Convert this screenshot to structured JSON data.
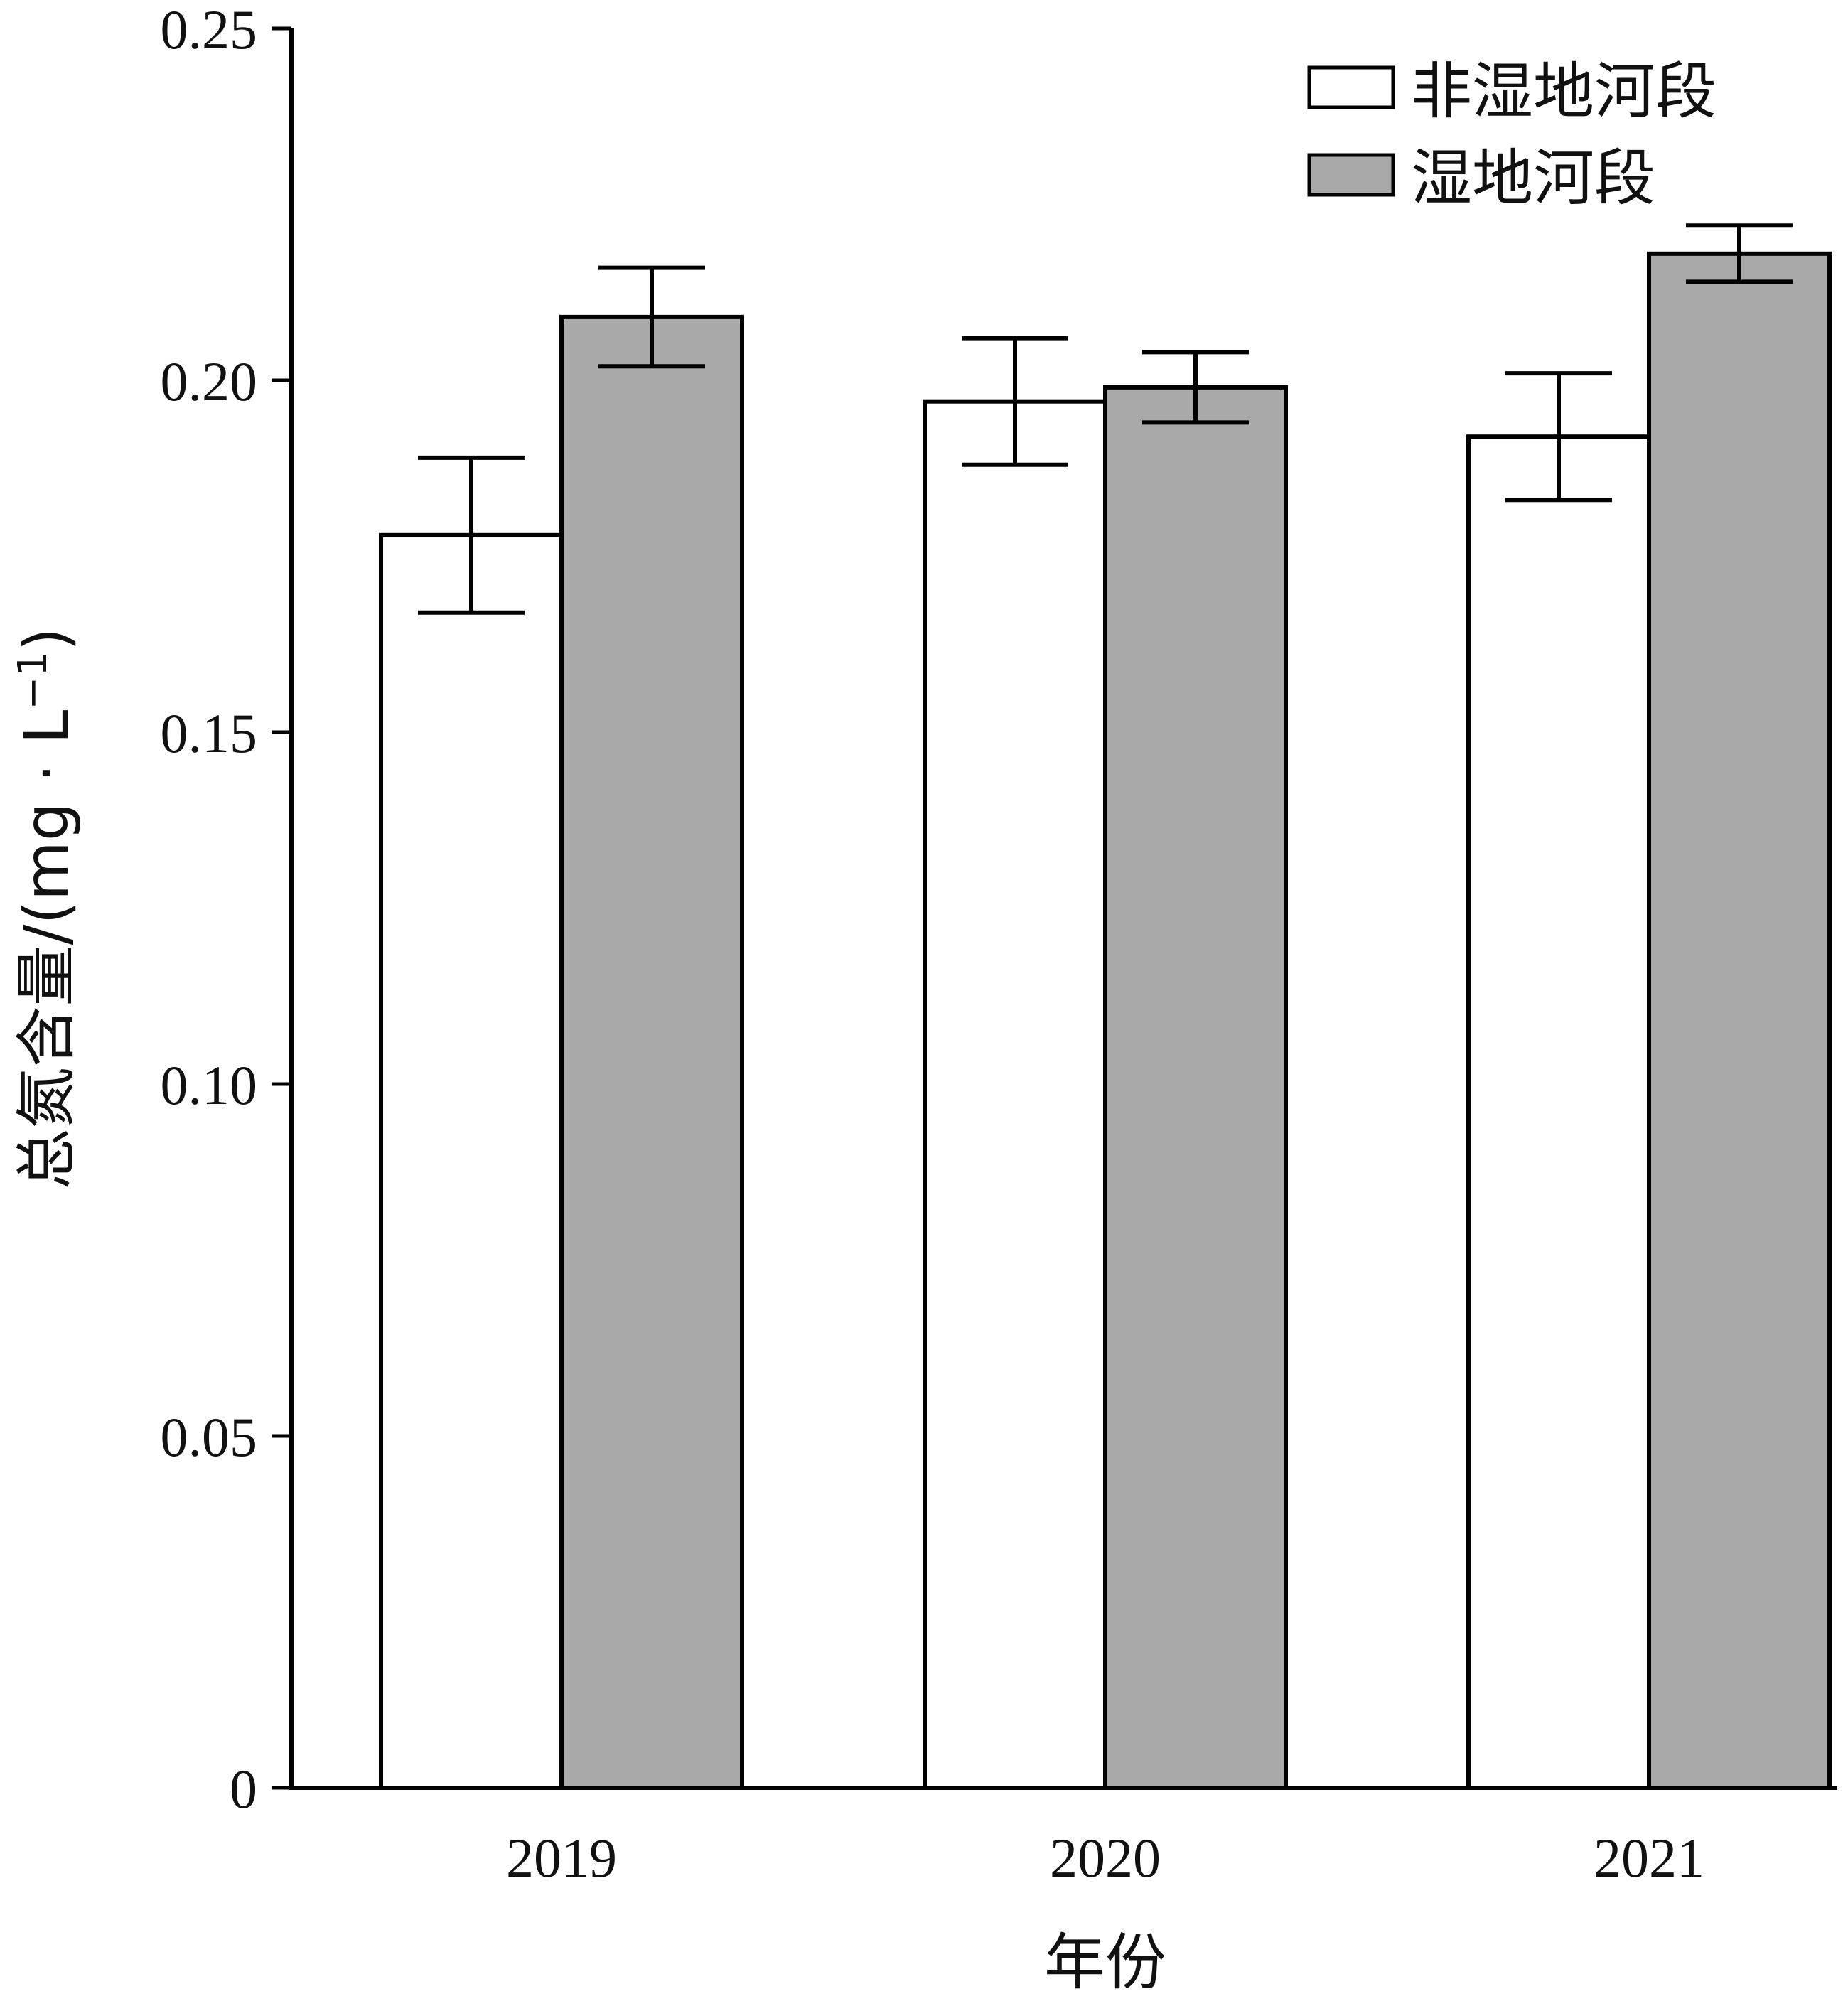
{
  "chart_data": {
    "type": "bar",
    "categories": [
      "2019",
      "2020",
      "2021"
    ],
    "series": [
      {
        "name": "非湿地河段",
        "values": [
          0.178,
          0.197,
          0.192
        ],
        "error": [
          0.011,
          0.009,
          0.009
        ],
        "color": "#ffffff"
      },
      {
        "name": "湿地河段",
        "values": [
          0.209,
          0.199,
          0.218
        ],
        "error": [
          0.007,
          0.005,
          0.004
        ],
        "color": "#a9a9a9"
      }
    ],
    "xlabel": "年份",
    "ylabel_main": "总氮含量/(mg · L",
    "ylabel_sup": "−1",
    "ylabel_close": ")",
    "ylim": [
      0,
      0.25
    ],
    "yticks": [
      0,
      0.05,
      0.1,
      0.15,
      0.2,
      0.25
    ],
    "ytick_labels": [
      "0",
      "0.05",
      "0.10",
      "0.15",
      "0.20",
      "0.25"
    ],
    "grid": false,
    "legend_position": "top-right"
  }
}
